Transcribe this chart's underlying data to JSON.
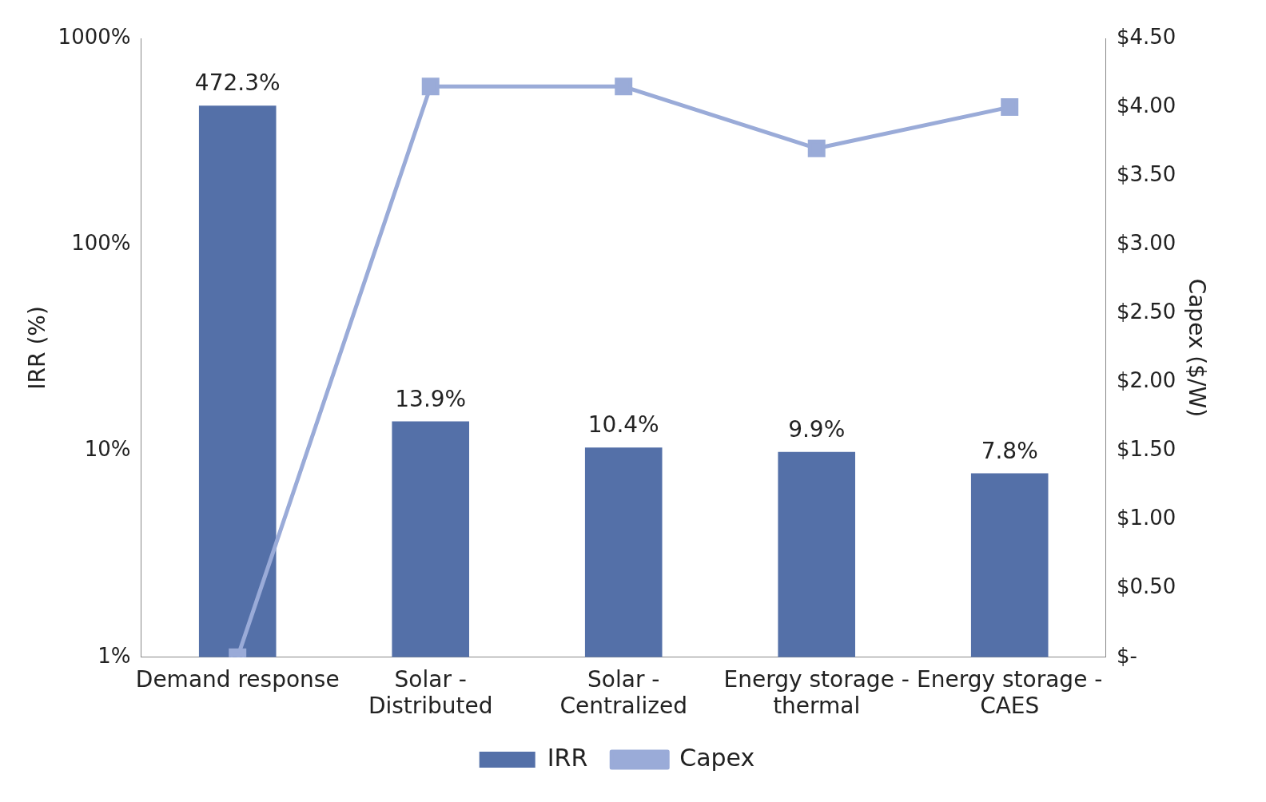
{
  "chart_data": {
    "type": "bar",
    "ylabel": "IRR (%)",
    "y2label": "Capex ($/W)",
    "categories": [
      "Demand response",
      "Solar - Distributed",
      "Solar - Centralized",
      "Energy storage - thermal",
      "Energy storage - CAES"
    ],
    "series": [
      {
        "name": "IRR",
        "color": "#5470a8",
        "values": [
          472.3,
          13.9,
          10.4,
          9.9,
          7.8
        ],
        "value_labels": [
          "472.3%",
          "13.9%",
          "10.4%",
          "9.9%",
          "7.8%"
        ]
      },
      {
        "name": "Capex",
        "type": "line",
        "axis": "y2",
        "color": "#9aabd8",
        "values": [
          0,
          4.15,
          4.15,
          3.7,
          4.0
        ],
        "marker": "square",
        "line_style": "solid"
      }
    ],
    "log": "y",
    "ylim": [
      1,
      1000
    ],
    "yticks": [
      {
        "value": 1,
        "label": "1%"
      },
      {
        "value": 10,
        "label": "10%"
      },
      {
        "value": 100,
        "label": "100%"
      },
      {
        "value": 1000,
        "label": "1000%"
      }
    ],
    "y2lim": [
      0,
      4.5
    ],
    "y2ticks": [
      {
        "value": 0,
        "label": "$-"
      },
      {
        "value": 0.5,
        "label": "$0.50"
      },
      {
        "value": 1,
        "label": "$1.00"
      },
      {
        "value": 1.5,
        "label": "$1.50"
      },
      {
        "value": 2,
        "label": "$2.00"
      },
      {
        "value": 2.5,
        "label": "$2.50"
      },
      {
        "value": 3,
        "label": "$3.00"
      },
      {
        "value": 3.5,
        "label": "$3.50"
      },
      {
        "value": 4,
        "label": "$4.00"
      },
      {
        "value": 4.5,
        "label": "$4.50"
      }
    ],
    "grid": false,
    "legend": "bottom"
  }
}
